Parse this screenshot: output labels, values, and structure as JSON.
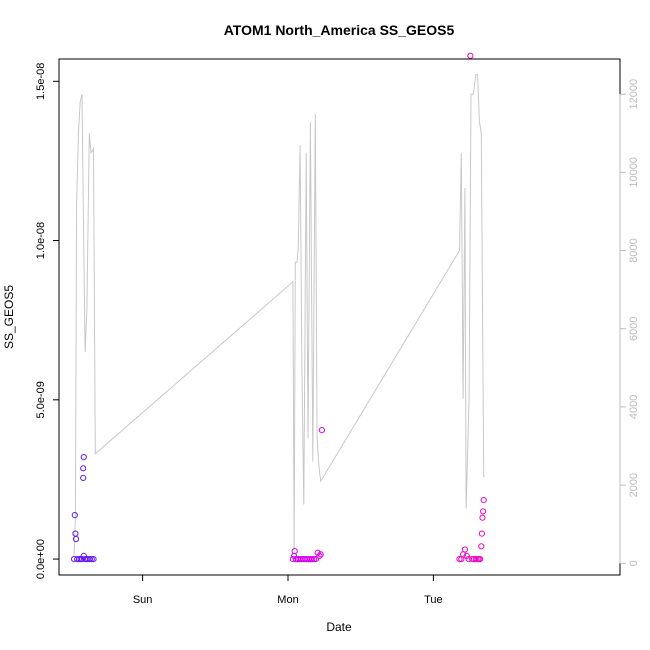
{
  "chart_data": {
    "type": "scatter",
    "title": "ATOM1 North_America SS_GEOS5",
    "xlabel": "Date",
    "ylabel": "SS_GEOS5",
    "x_unit": "hours since Sat 00:00",
    "xlim": [
      10.2,
      102.8
    ],
    "ylim": [
      -5e-10,
      1.57e-08
    ],
    "y2lim": [
      -300,
      12900
    ],
    "x_ticks": [
      {
        "value": 24,
        "label": "Sun"
      },
      {
        "value": 48,
        "label": "Mon"
      },
      {
        "value": 72,
        "label": "Tue"
      }
    ],
    "y_ticks": [
      {
        "value": 0,
        "label": "0.0e+00"
      },
      {
        "value": 5e-09,
        "label": "5.0e-09"
      },
      {
        "value": 1e-08,
        "label": "1.0e-08"
      },
      {
        "value": 1.5e-08,
        "label": "1.5e-08"
      }
    ],
    "y2_ticks": [
      {
        "value": 0,
        "label": "0"
      },
      {
        "value": 2000,
        "label": "2000"
      },
      {
        "value": 4000,
        "label": "4000"
      },
      {
        "value": 6000,
        "label": "6000"
      },
      {
        "value": 8000,
        "label": "8000"
      },
      {
        "value": 10000,
        "label": "10000"
      },
      {
        "value": 12000,
        "label": "12000"
      }
    ],
    "colors": {
      "line": "#c8c8c8",
      "axis": "#000000",
      "right_axis": "#bdbdbd",
      "points_start": "#5a1ef0",
      "points_mid": "#e600f0",
      "points_end": "#f0148c"
    },
    "series": [
      {
        "style": "line",
        "axis": "right",
        "points": [
          [
            12.7,
            200
          ],
          [
            12.9,
            1200
          ],
          [
            13.1,
            9200
          ],
          [
            13.4,
            11000
          ],
          [
            13.7,
            11800
          ],
          [
            14.0,
            12000
          ],
          [
            14.3,
            8000
          ],
          [
            14.5,
            5400
          ],
          [
            14.8,
            6500
          ],
          [
            15.2,
            11000
          ],
          [
            15.5,
            10500
          ],
          [
            15.9,
            10600
          ],
          [
            16.2,
            2800
          ],
          [
            48.8,
            7200
          ],
          [
            49.0,
            300
          ],
          [
            49.2,
            7700
          ],
          [
            49.5,
            7700
          ],
          [
            49.7,
            8100
          ],
          [
            50.0,
            10700
          ],
          [
            50.3,
            5000
          ],
          [
            50.6,
            1500
          ],
          [
            51.0,
            10500
          ],
          [
            51.3,
            3200
          ],
          [
            51.7,
            11300
          ],
          [
            52.1,
            2600
          ],
          [
            52.5,
            11500
          ],
          [
            52.8,
            3200
          ],
          [
            53.1,
            2500
          ],
          [
            53.4,
            2100
          ],
          [
            76.3,
            8000
          ],
          [
            76.6,
            10500
          ],
          [
            76.9,
            4200
          ],
          [
            77.2,
            9600
          ],
          [
            77.4,
            1400
          ],
          [
            77.6,
            2500
          ],
          [
            77.9,
            4300
          ],
          [
            78.2,
            12000
          ],
          [
            78.6,
            12000
          ],
          [
            79.0,
            12500
          ],
          [
            79.3,
            12500
          ],
          [
            79.6,
            11300
          ],
          [
            79.9,
            11000
          ],
          [
            80.3,
            2200
          ]
        ]
      },
      {
        "style": "points",
        "axis": "left",
        "points": [
          [
            12.7,
            0
          ],
          [
            12.8,
            1.38e-09
          ],
          [
            12.9,
            8e-10
          ],
          [
            13.0,
            6.3e-10
          ],
          [
            13.2,
            0
          ],
          [
            13.5,
            0
          ],
          [
            13.8,
            0
          ],
          [
            14.0,
            0
          ],
          [
            14.2,
            2.55e-09
          ],
          [
            14.2,
            2.85e-09
          ],
          [
            14.3,
            3.2e-09
          ],
          [
            14.3,
            1e-10
          ],
          [
            14.5,
            0
          ],
          [
            14.7,
            0
          ],
          [
            15.0,
            0
          ],
          [
            15.3,
            0
          ],
          [
            15.6,
            0
          ],
          [
            15.9,
            0
          ],
          [
            48.8,
            0
          ],
          [
            49.0,
            1e-10
          ],
          [
            49.1,
            2.5e-10
          ],
          [
            49.3,
            0
          ],
          [
            49.6,
            0
          ],
          [
            49.9,
            0
          ],
          [
            50.2,
            0
          ],
          [
            50.5,
            0
          ],
          [
            50.8,
            0
          ],
          [
            51.1,
            0
          ],
          [
            51.4,
            0
          ],
          [
            51.7,
            0
          ],
          [
            52.0,
            0
          ],
          [
            52.3,
            0
          ],
          [
            52.6,
            0
          ],
          [
            52.9,
            2e-10
          ],
          [
            53.2,
            1e-10
          ],
          [
            53.4,
            1.5e-10
          ],
          [
            53.6,
            4.05e-09
          ],
          [
            76.3,
            0
          ],
          [
            76.6,
            0
          ],
          [
            76.9,
            1.5e-10
          ],
          [
            77.2,
            3e-10
          ],
          [
            77.5,
            1e-10
          ],
          [
            77.8,
            0
          ],
          [
            78.1,
            1.58e-08
          ],
          [
            78.4,
            0
          ],
          [
            78.7,
            0
          ],
          [
            79.0,
            0
          ],
          [
            79.3,
            0
          ],
          [
            79.5,
            0
          ],
          [
            79.7,
            0
          ],
          [
            79.9,
            4e-10
          ],
          [
            80.0,
            8e-10
          ],
          [
            80.1,
            1.3e-09
          ],
          [
            80.2,
            1.5e-09
          ],
          [
            80.3,
            1.85e-09
          ]
        ]
      }
    ]
  }
}
